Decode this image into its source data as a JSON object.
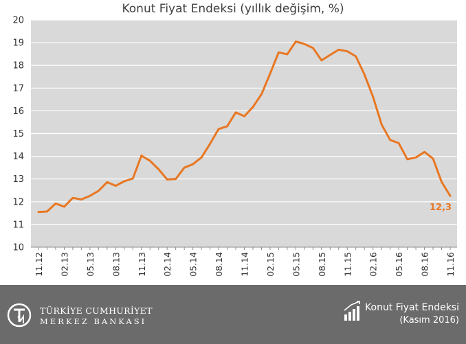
{
  "chart_data": {
    "type": "line",
    "title": "Konut Fiyat Endeksi (yıllık değişim, %)",
    "ylim": [
      10,
      20
    ],
    "yticks": [
      10,
      11,
      12,
      13,
      14,
      15,
      16,
      17,
      18,
      19,
      20
    ],
    "grid": true,
    "x": [
      "11.12",
      "12.12",
      "01.13",
      "02.13",
      "03.13",
      "04.13",
      "05.13",
      "06.13",
      "07.13",
      "08.13",
      "09.13",
      "10.13",
      "11.13",
      "12.13",
      "01.14",
      "02.14",
      "03.14",
      "04.14",
      "05.14",
      "06.14",
      "07.14",
      "08.14",
      "09.14",
      "10.14",
      "11.14",
      "12.14",
      "01.15",
      "02.15",
      "03.15",
      "04.15",
      "05.15",
      "06.15",
      "07.15",
      "08.15",
      "09.15",
      "10.15",
      "11.15",
      "12.15",
      "01.16",
      "02.16",
      "03.16",
      "04.16",
      "05.16",
      "06.16",
      "07.16",
      "08.16",
      "09.16",
      "10.16",
      "11.16"
    ],
    "xtick_labels": [
      "11.12",
      "02.13",
      "05.13",
      "08.13",
      "11.13",
      "02.14",
      "05.14",
      "08.14",
      "11.14",
      "02.15",
      "05.15",
      "08.15",
      "11.15",
      "02.16",
      "05.16",
      "08.16",
      "11.16"
    ],
    "series": [
      {
        "name": "",
        "color": "#E87722",
        "values": [
          11.55,
          11.57,
          11.92,
          11.78,
          12.17,
          12.1,
          12.26,
          12.48,
          12.86,
          12.7,
          12.9,
          13.02,
          14.03,
          13.8,
          13.43,
          12.98,
          13.0,
          13.5,
          13.65,
          13.95,
          14.55,
          15.2,
          15.32,
          15.93,
          15.76,
          16.17,
          16.73,
          17.63,
          18.57,
          18.49,
          19.05,
          18.94,
          18.77,
          18.22,
          18.46,
          18.69,
          18.62,
          18.4,
          17.6,
          16.62,
          15.4,
          14.72,
          14.58,
          13.87,
          13.95,
          14.19,
          13.9,
          12.87,
          12.26
        ]
      }
    ],
    "annotation": {
      "text": "12,3",
      "color": "#E87722"
    }
  },
  "footer": {
    "bank_line1": "TÜRKİYE CUMHURİYET",
    "bank_line2": "MERKEZ BANKASI",
    "logo_text": "TCMB",
    "report_title": "Konut Fiyat Endeksi",
    "report_date": "(Kasım 2016)",
    "background": "#6b6b6b"
  }
}
